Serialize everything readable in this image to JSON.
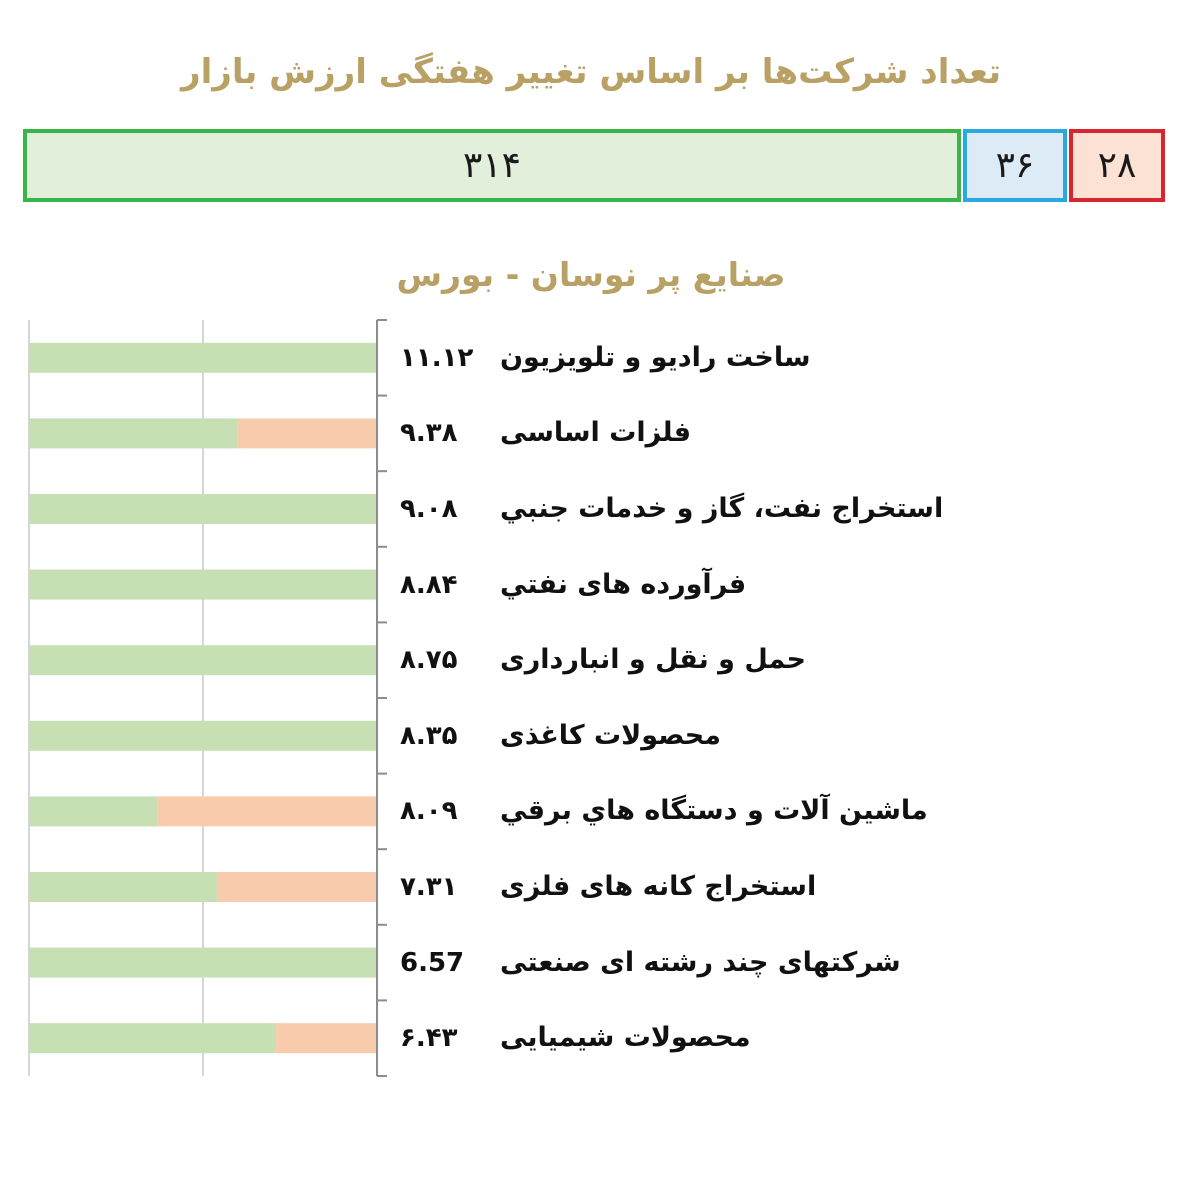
{
  "header": {
    "title": "تعداد شرکت‌ها بر اساس تغییر هفتگی ارزش بازار"
  },
  "summary": {
    "green": {
      "value": "۳۱۴",
      "color": "#3ab54a"
    },
    "blue": {
      "value": "۳۶",
      "color": "#29a9e0"
    },
    "red": {
      "value": "۲۸",
      "color": "#d9262e"
    }
  },
  "section": {
    "title": "صنایع پر نوسان - بورس"
  },
  "chart_data": {
    "type": "bar",
    "orientation": "horizontal",
    "title": "صنایع پر نوسان - بورس",
    "categories": [
      "ساخت راديو و تلويزيون",
      "فلزات اساسی",
      "استخراج نفت، گاز و خدمات جنبي",
      "فرآورده های نفتي",
      "حمل و نقل و انبارداری",
      "محصولات کاغذی",
      "ماشين آلات و دستگاه هاي برقي",
      "استخراج کانه های فلزی",
      "شرکتهای چند رشته ای صنعتی",
      "محصولات شیمیایی"
    ],
    "value_labels": [
      "۱۱.۱۲",
      "۹.۳۸",
      "۹.۰۸",
      "۸.۸۴",
      "۸.۷۵",
      "۸.۳۵",
      "۸.۰۹",
      "۷.۳۱",
      "6.57",
      "۶.۴۳"
    ],
    "values": [
      11.12,
      9.38,
      9.08,
      8.84,
      8.75,
      8.35,
      8.09,
      7.31,
      6.57,
      6.43
    ],
    "series": [
      {
        "values": [
          100,
          60,
          100,
          100,
          100,
          100,
          37,
          54,
          100,
          71
        ],
        "color": "#c6e0b4"
      },
      {
        "values": [
          0,
          40,
          0,
          0,
          0,
          0,
          63,
          46,
          0,
          29
        ],
        "color": "#f8cbad"
      }
    ],
    "xlim": [
      0,
      100
    ],
    "grid": true
  }
}
